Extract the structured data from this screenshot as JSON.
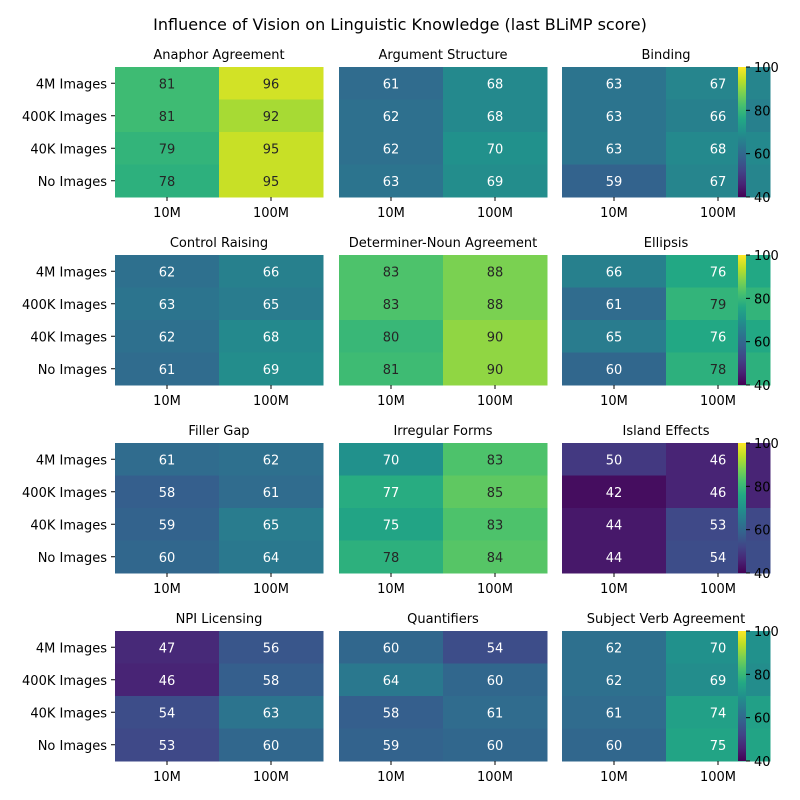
{
  "title": "Influence of Vision on Linguistic Knowledge (last BLiMP score)",
  "colormap": "viridis",
  "chart_data": [
    {
      "type": "heatmap",
      "title": "Anaphor Agreement",
      "rows": [
        "4M Images",
        "400K Images",
        "40K Images",
        "No Images"
      ],
      "columns": [
        "10M",
        "100M"
      ],
      "values": [
        [
          81,
          96
        ],
        [
          81,
          92
        ],
        [
          79,
          95
        ],
        [
          78,
          95
        ]
      ],
      "vmin": 40,
      "vmax": 100
    },
    {
      "type": "heatmap",
      "title": "Argument Structure",
      "rows": [
        "4M Images",
        "400K Images",
        "40K Images",
        "No Images"
      ],
      "columns": [
        "10M",
        "100M"
      ],
      "values": [
        [
          61,
          68
        ],
        [
          62,
          68
        ],
        [
          62,
          70
        ],
        [
          63,
          69
        ]
      ],
      "vmin": 40,
      "vmax": 100
    },
    {
      "type": "heatmap",
      "title": "Binding",
      "rows": [
        "4M Images",
        "400K Images",
        "40K Images",
        "No Images"
      ],
      "columns": [
        "10M",
        "100M"
      ],
      "values": [
        [
          63,
          67
        ],
        [
          63,
          66
        ],
        [
          63,
          68
        ],
        [
          59,
          67
        ]
      ],
      "vmin": 40,
      "vmax": 100
    },
    {
      "type": "heatmap",
      "title": "Control Raising",
      "rows": [
        "4M Images",
        "400K Images",
        "40K Images",
        "No Images"
      ],
      "columns": [
        "10M",
        "100M"
      ],
      "values": [
        [
          62,
          66
        ],
        [
          63,
          65
        ],
        [
          62,
          68
        ],
        [
          61,
          69
        ]
      ],
      "vmin": 40,
      "vmax": 100
    },
    {
      "type": "heatmap",
      "title": "Determiner-Noun Agreement",
      "rows": [
        "4M Images",
        "400K Images",
        "40K Images",
        "No Images"
      ],
      "columns": [
        "10M",
        "100M"
      ],
      "values": [
        [
          83,
          88
        ],
        [
          83,
          88
        ],
        [
          80,
          90
        ],
        [
          81,
          90
        ]
      ],
      "vmin": 40,
      "vmax": 100
    },
    {
      "type": "heatmap",
      "title": "Ellipsis",
      "rows": [
        "4M Images",
        "400K Images",
        "40K Images",
        "No Images"
      ],
      "columns": [
        "10M",
        "100M"
      ],
      "values": [
        [
          66,
          76
        ],
        [
          61,
          79
        ],
        [
          65,
          76
        ],
        [
          60,
          78
        ]
      ],
      "vmin": 40,
      "vmax": 100
    },
    {
      "type": "heatmap",
      "title": "Filler Gap",
      "rows": [
        "4M Images",
        "400K Images",
        "40K Images",
        "No Images"
      ],
      "columns": [
        "10M",
        "100M"
      ],
      "values": [
        [
          61,
          62
        ],
        [
          58,
          61
        ],
        [
          59,
          65
        ],
        [
          60,
          64
        ]
      ],
      "vmin": 40,
      "vmax": 100
    },
    {
      "type": "heatmap",
      "title": "Irregular Forms",
      "rows": [
        "4M Images",
        "400K Images",
        "40K Images",
        "No Images"
      ],
      "columns": [
        "10M",
        "100M"
      ],
      "values": [
        [
          70,
          83
        ],
        [
          77,
          85
        ],
        [
          75,
          83
        ],
        [
          78,
          84
        ]
      ],
      "vmin": 40,
      "vmax": 100
    },
    {
      "type": "heatmap",
      "title": "Island Effects",
      "rows": [
        "4M Images",
        "400K Images",
        "40K Images",
        "No Images"
      ],
      "columns": [
        "10M",
        "100M"
      ],
      "values": [
        [
          50,
          46
        ],
        [
          42,
          46
        ],
        [
          44,
          53
        ],
        [
          44,
          54
        ]
      ],
      "vmin": 40,
      "vmax": 100
    },
    {
      "type": "heatmap",
      "title": "NPI Licensing",
      "rows": [
        "4M Images",
        "400K Images",
        "40K Images",
        "No Images"
      ],
      "columns": [
        "10M",
        "100M"
      ],
      "values": [
        [
          47,
          56
        ],
        [
          46,
          58
        ],
        [
          54,
          63
        ],
        [
          53,
          60
        ]
      ],
      "vmin": 40,
      "vmax": 100
    },
    {
      "type": "heatmap",
      "title": "Quantifiers",
      "rows": [
        "4M Images",
        "400K Images",
        "40K Images",
        "No Images"
      ],
      "columns": [
        "10M",
        "100M"
      ],
      "values": [
        [
          60,
          54
        ],
        [
          64,
          60
        ],
        [
          58,
          61
        ],
        [
          59,
          60
        ]
      ],
      "vmin": 40,
      "vmax": 100
    },
    {
      "type": "heatmap",
      "title": "Subject Verb Agreement",
      "rows": [
        "4M Images",
        "400K Images",
        "40K Images",
        "No Images"
      ],
      "columns": [
        "10M",
        "100M"
      ],
      "values": [
        [
          62,
          70
        ],
        [
          62,
          69
        ],
        [
          61,
          74
        ],
        [
          60,
          75
        ]
      ],
      "vmin": 40,
      "vmax": 100
    }
  ],
  "colorbar_ticks": [
    "40",
    "60",
    "80",
    "100"
  ]
}
